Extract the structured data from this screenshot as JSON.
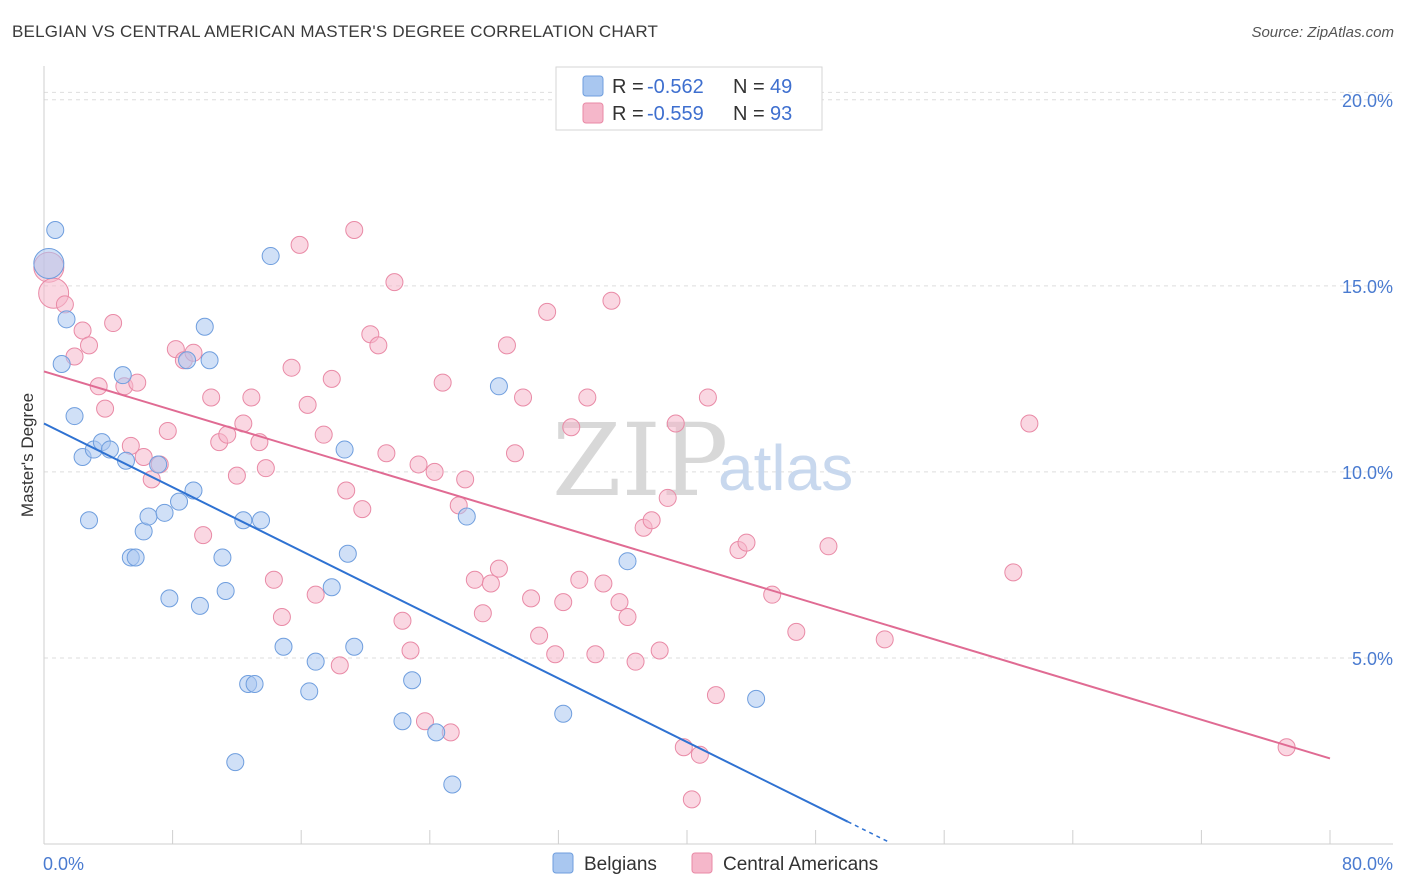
{
  "title": "BELGIAN VS CENTRAL AMERICAN MASTER'S DEGREE CORRELATION CHART",
  "source": "Source: ZipAtlas.com",
  "watermark": {
    "zip": "ZIP",
    "atlas": "atlas"
  },
  "legend": {
    "rows": [
      {
        "r_label": "R = ",
        "r_value": "-0.562",
        "n_label": "N = ",
        "n_value": "49",
        "color": "#a9c7f0"
      },
      {
        "r_label": "R = ",
        "r_value": "-0.559",
        "n_label": "N = ",
        "n_value": "93",
        "color": "#f5b7ca"
      }
    ]
  },
  "bottom_legend": [
    "Belgians",
    "Central Americans"
  ],
  "chart_data": {
    "type": "scatter",
    "xlabel": "",
    "ylabel": "Master's Degree",
    "xlim": [
      0,
      80
    ],
    "ylim": [
      0,
      20.8
    ],
    "x_tick_labels": [
      "0.0%",
      "80.0%"
    ],
    "y_tick_labels": [
      "5.0%",
      "10.0%",
      "15.0%",
      "20.0%"
    ],
    "y_ticks": [
      5,
      10,
      15,
      20
    ],
    "series": [
      {
        "name": "Belgians",
        "color": "#a9c7f0",
        "stroke": "#6f9ede",
        "trend_color": "#2f72d2",
        "trend": {
          "x0": 0,
          "y0": 11.3,
          "x1": 50,
          "y1": 0.6,
          "dash_to_x": 52.5
        },
        "points": [
          [
            0.3,
            15.6
          ],
          [
            0.7,
            16.5
          ],
          [
            1.4,
            14.1
          ],
          [
            1.1,
            12.9
          ],
          [
            1.9,
            11.5
          ],
          [
            2.4,
            10.4
          ],
          [
            3.1,
            10.6
          ],
          [
            3.6,
            10.8
          ],
          [
            4.1,
            10.6
          ],
          [
            2.8,
            8.7
          ],
          [
            4.9,
            12.6
          ],
          [
            5.1,
            10.3
          ],
          [
            5.4,
            7.7
          ],
          [
            5.7,
            7.7
          ],
          [
            6.2,
            8.4
          ],
          [
            6.5,
            8.8
          ],
          [
            7.1,
            10.2
          ],
          [
            7.5,
            8.9
          ],
          [
            7.8,
            6.6
          ],
          [
            8.4,
            9.2
          ],
          [
            8.9,
            13.0
          ],
          [
            9.3,
            9.5
          ],
          [
            9.7,
            6.4
          ],
          [
            10.3,
            13.0
          ],
          [
            10.0,
            13.9
          ],
          [
            11.1,
            7.7
          ],
          [
            11.3,
            6.8
          ],
          [
            12.4,
            8.7
          ],
          [
            13.5,
            8.7
          ],
          [
            14.1,
            15.8
          ],
          [
            11.9,
            2.2
          ],
          [
            12.7,
            4.3
          ],
          [
            13.1,
            4.3
          ],
          [
            14.9,
            5.3
          ],
          [
            16.5,
            4.1
          ],
          [
            16.9,
            4.9
          ],
          [
            17.9,
            6.9
          ],
          [
            18.7,
            10.6
          ],
          [
            18.9,
            7.8
          ],
          [
            19.3,
            5.3
          ],
          [
            22.3,
            3.3
          ],
          [
            22.9,
            4.4
          ],
          [
            24.4,
            3.0
          ],
          [
            25.4,
            1.6
          ],
          [
            26.3,
            8.8
          ],
          [
            28.3,
            12.3
          ],
          [
            32.3,
            3.5
          ],
          [
            36.3,
            7.6
          ],
          [
            44.3,
            3.9
          ]
        ]
      },
      {
        "name": "Central Americans",
        "color": "#f5b7ca",
        "stroke": "#e98aa6",
        "trend_color": "#e06b93",
        "trend": {
          "x0": 0,
          "y0": 12.7,
          "x1": 80,
          "y1": 2.3
        },
        "points": [
          [
            0.3,
            15.5
          ],
          [
            0.6,
            14.8
          ],
          [
            1.3,
            14.5
          ],
          [
            1.9,
            13.1
          ],
          [
            2.4,
            13.8
          ],
          [
            2.8,
            13.4
          ],
          [
            3.4,
            12.3
          ],
          [
            3.8,
            11.7
          ],
          [
            4.3,
            14.0
          ],
          [
            5.0,
            12.3
          ],
          [
            5.4,
            10.7
          ],
          [
            5.8,
            12.4
          ],
          [
            6.2,
            10.4
          ],
          [
            6.7,
            9.8
          ],
          [
            7.2,
            10.2
          ],
          [
            7.7,
            11.1
          ],
          [
            8.2,
            13.3
          ],
          [
            8.7,
            13.0
          ],
          [
            9.3,
            13.2
          ],
          [
            9.9,
            8.3
          ],
          [
            10.4,
            12.0
          ],
          [
            10.9,
            10.8
          ],
          [
            11.4,
            11.0
          ],
          [
            12.0,
            9.9
          ],
          [
            12.4,
            11.3
          ],
          [
            12.9,
            12.0
          ],
          [
            13.4,
            10.8
          ],
          [
            13.8,
            10.1
          ],
          [
            14.3,
            7.1
          ],
          [
            14.8,
            6.1
          ],
          [
            15.4,
            12.8
          ],
          [
            15.9,
            16.1
          ],
          [
            16.4,
            11.8
          ],
          [
            16.9,
            6.7
          ],
          [
            17.4,
            11.0
          ],
          [
            17.9,
            12.5
          ],
          [
            18.4,
            4.8
          ],
          [
            18.8,
            9.5
          ],
          [
            19.3,
            16.5
          ],
          [
            19.8,
            9.0
          ],
          [
            20.3,
            13.7
          ],
          [
            20.8,
            13.4
          ],
          [
            21.3,
            10.5
          ],
          [
            21.8,
            15.1
          ],
          [
            22.3,
            6.0
          ],
          [
            22.8,
            5.2
          ],
          [
            23.3,
            10.2
          ],
          [
            23.7,
            3.3
          ],
          [
            24.3,
            10.0
          ],
          [
            24.8,
            12.4
          ],
          [
            25.3,
            3.0
          ],
          [
            25.8,
            9.1
          ],
          [
            26.2,
            9.8
          ],
          [
            26.8,
            7.1
          ],
          [
            27.3,
            6.2
          ],
          [
            27.8,
            7.0
          ],
          [
            28.3,
            7.4
          ],
          [
            28.8,
            13.4
          ],
          [
            29.3,
            10.5
          ],
          [
            29.8,
            12.0
          ],
          [
            30.3,
            6.6
          ],
          [
            30.8,
            5.6
          ],
          [
            31.3,
            14.3
          ],
          [
            31.8,
            5.1
          ],
          [
            32.3,
            6.5
          ],
          [
            32.8,
            11.2
          ],
          [
            33.3,
            7.1
          ],
          [
            33.8,
            12.0
          ],
          [
            34.3,
            5.1
          ],
          [
            34.8,
            7.0
          ],
          [
            35.3,
            14.6
          ],
          [
            35.8,
            6.5
          ],
          [
            36.3,
            6.1
          ],
          [
            36.8,
            4.9
          ],
          [
            37.3,
            8.5
          ],
          [
            37.8,
            8.7
          ],
          [
            38.3,
            5.2
          ],
          [
            38.8,
            9.3
          ],
          [
            39.3,
            11.3
          ],
          [
            39.8,
            2.6
          ],
          [
            40.3,
            1.2
          ],
          [
            40.8,
            2.4
          ],
          [
            41.3,
            12.0
          ],
          [
            41.8,
            4.0
          ],
          [
            43.2,
            7.9
          ],
          [
            43.7,
            8.1
          ],
          [
            45.3,
            6.7
          ],
          [
            46.8,
            5.7
          ],
          [
            48.8,
            8.0
          ],
          [
            52.3,
            5.5
          ],
          [
            60.3,
            7.3
          ],
          [
            61.3,
            11.3
          ],
          [
            77.3,
            2.6
          ]
        ]
      }
    ]
  }
}
